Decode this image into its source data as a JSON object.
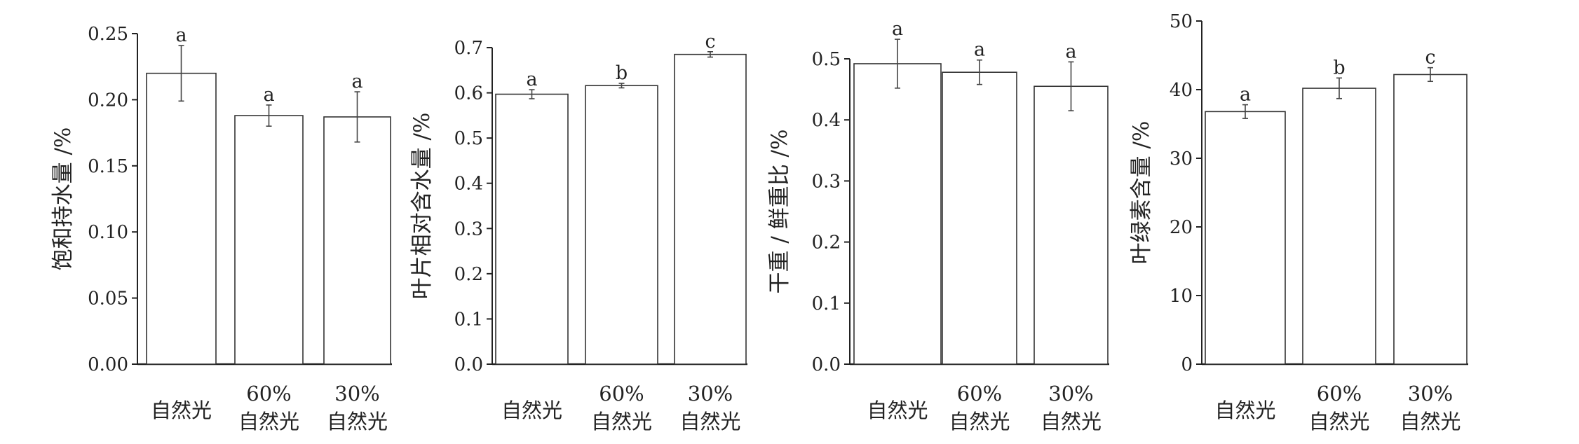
{
  "chart_data": [
    {
      "type": "bar",
      "ylabel": "饱和持水量 /%",
      "ylim": [
        0,
        0.25
      ],
      "yticks": [
        "0.00",
        "0.05",
        "0.10",
        "0.15",
        "0.20",
        "0.25"
      ],
      "categories": [
        [
          "自然光"
        ],
        [
          "60%",
          "自然光"
        ],
        [
          "30%",
          "自然光"
        ]
      ],
      "values": [
        0.22,
        0.188,
        0.187
      ],
      "errors": [
        0.021,
        0.008,
        0.019
      ],
      "significance": [
        "a",
        "a",
        "a"
      ],
      "grid": false
    },
    {
      "type": "bar",
      "ylabel": "叶片相对含水量 /%",
      "ylim": [
        0,
        0.7
      ],
      "yticks": [
        "0.0",
        "0.1",
        "0.2",
        "0.3",
        "0.4",
        "0.5",
        "0.6",
        "0.7"
      ],
      "categories": [
        [
          "自然光"
        ],
        [
          "60%",
          "自然光"
        ],
        [
          "30%",
          "自然光"
        ]
      ],
      "values": [
        0.597,
        0.616,
        0.685
      ],
      "errors": [
        0.01,
        0.005,
        0.006
      ],
      "significance": [
        "a",
        "b",
        "c"
      ],
      "grid": false
    },
    {
      "type": "bar",
      "ylabel": "干重 / 鲜重比 /%",
      "ylim": [
        0,
        0.5
      ],
      "yticks": [
        "0.0",
        "0.1",
        "0.2",
        "0.3",
        "0.4",
        "0.5"
      ],
      "categories": [
        [
          "自然光"
        ],
        [
          "60%",
          "自然光"
        ],
        [
          "30%",
          "自然光"
        ]
      ],
      "values": [
        0.492,
        0.478,
        0.455
      ],
      "errors": [
        0.04,
        0.02,
        0.04
      ],
      "significance": [
        "a",
        "a",
        "a"
      ],
      "grid": false
    },
    {
      "type": "bar",
      "ylabel": "叶绿素含量 /%",
      "ylim": [
        0,
        50
      ],
      "yticks": [
        "0",
        "10",
        "20",
        "30",
        "40",
        "50"
      ],
      "categories": [
        [
          "自然光"
        ],
        [
          "60%",
          "自然光"
        ],
        [
          "30%",
          "自然光"
        ]
      ],
      "values": [
        36.8,
        40.2,
        42.2
      ],
      "errors": [
        1.0,
        1.5,
        1.0
      ],
      "significance": [
        "a",
        "b",
        "c"
      ],
      "grid": false
    }
  ]
}
